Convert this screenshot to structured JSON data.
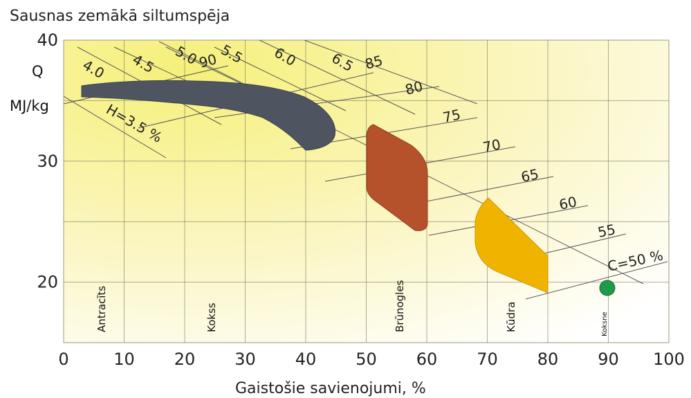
{
  "chart_data": {
    "type": "scatter",
    "title": "Sausnas zemākā siltumspēja",
    "xlabel": "Gaistošie savienojumi, %",
    "ylabel_line1": "Q",
    "ylabel_line2": "MJ/kg",
    "xlim": [
      0,
      100
    ],
    "ylim": [
      15,
      40
    ],
    "x_ticks": [
      "0",
      "10",
      "20",
      "30",
      "40",
      "50",
      "60",
      "70",
      "80",
      "90",
      "100"
    ],
    "y_ticks": [
      "40",
      "30",
      "20"
    ],
    "grid": true,
    "hydrogen_lines": [
      "H=3.5 %",
      "4.0",
      "4.5",
      "5.0",
      "5.5",
      "6.0",
      "6.5"
    ],
    "carbon_lines": [
      "90",
      "85",
      "80",
      "75",
      "70",
      "65",
      "60",
      "55",
      "C=50 %"
    ],
    "regions": [
      {
        "name": "Antracīts",
        "color": "#4f5560",
        "x_range": [
          3,
          45
        ],
        "y_range": [
          31,
          36.7
        ]
      },
      {
        "name": "Brūnogles",
        "color": "#b5512b",
        "x_range": [
          50,
          60
        ],
        "y_range": [
          24,
          33
        ]
      },
      {
        "name": "Kūdra",
        "color": "#f0b400",
        "x_range": [
          68,
          80
        ],
        "y_range": [
          19,
          27
        ]
      }
    ],
    "fuel_labels": [
      "Antracīts",
      "Kokss",
      "Brūnogles",
      "Kūdra",
      "Koksne"
    ],
    "points": [
      {
        "name": "Koksne",
        "x": 86.5,
        "y": 19.5,
        "color": "#1e9a48"
      }
    ]
  }
}
